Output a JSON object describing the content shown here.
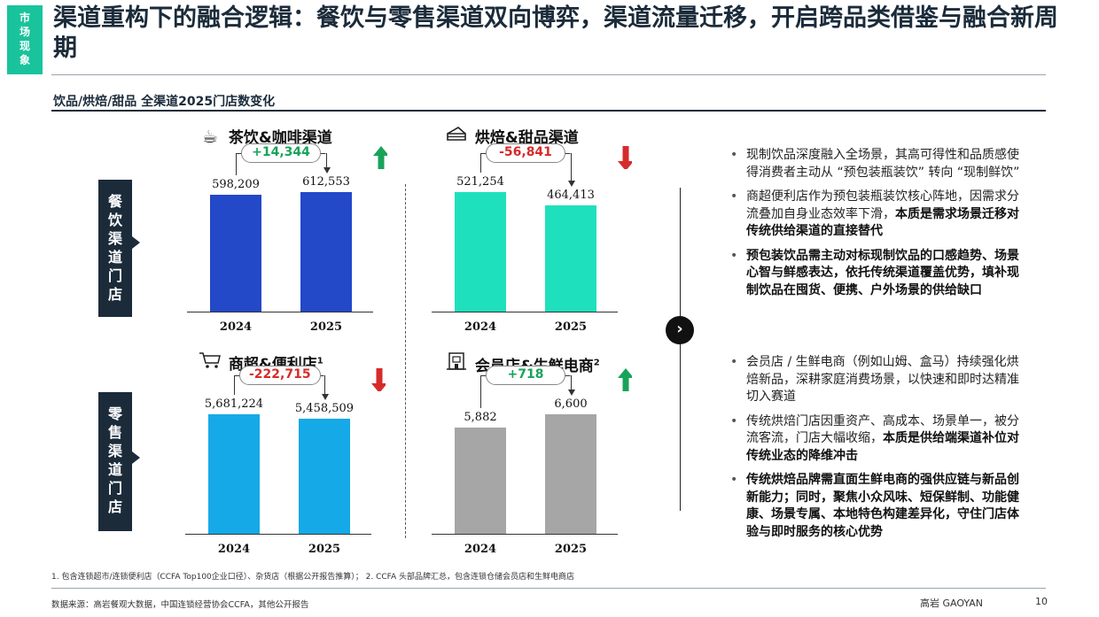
{
  "section_tag": "市场现象",
  "title": "渠道重构下的融合逻辑：餐饮与零售渠道双向博弈，渠道流量迁移，开启跨品类借鉴与融合新周期",
  "subtitle": "饮品/烘焙/甜品 全渠道2025门店数变化",
  "side_labels": {
    "food": "餐饮渠道门店",
    "retail": "零售渠道门店"
  },
  "chart_data": [
    {
      "type": "bar",
      "title": "茶饮&咖啡渠道",
      "categories": [
        "2024",
        "2025"
      ],
      "values": [
        598209,
        612553
      ],
      "value_labels": [
        "598,209",
        "612,553"
      ],
      "delta_label": "+14,344",
      "trend": "up",
      "bar_color": "#2348c8"
    },
    {
      "type": "bar",
      "title": "烘焙&甜品渠道",
      "categories": [
        "2024",
        "2025"
      ],
      "values": [
        521254,
        464413
      ],
      "value_labels": [
        "521,254",
        "464,413"
      ],
      "delta_label": "-56,841",
      "trend": "down",
      "bar_color": "#1fe0bc"
    },
    {
      "type": "bar",
      "title": "商超&便利店",
      "title_sup": "1",
      "categories": [
        "2024",
        "2025"
      ],
      "values": [
        5681224,
        5458509
      ],
      "value_labels": [
        "5,681,224",
        "5,458,509"
      ],
      "delta_label": "-222,715",
      "trend": "down",
      "bar_color": "#16a9e8"
    },
    {
      "type": "bar",
      "title": "会员店&生鲜电商",
      "title_sup": "2",
      "categories": [
        "2024",
        "2025"
      ],
      "values": [
        5882,
        6600
      ],
      "value_labels": [
        "5,882",
        "6,600"
      ],
      "delta_label": "+718",
      "trend": "up",
      "bar_color": "#a6a6a6"
    }
  ],
  "icons": [
    "coffee-cup-icon",
    "cake-icon",
    "shopping-cart-icon",
    "store-icon",
    "chevron-right-icon",
    "up-arrow-icon",
    "down-arrow-icon"
  ],
  "colors": {
    "accent": "#19c39c",
    "navy": "#1b2b3a",
    "up": "#19a35a",
    "down": "#d62b2b"
  },
  "bullets_top": [
    {
      "plain": "现制饮品深度融入全场景，其高可得性和品质感使得消费者主动从 “预包装瓶装饮” 转向 “现制鲜饮”",
      "bold": ""
    },
    {
      "plain": "商超便利店作为预包装瓶装饮核心阵地，因需求分流叠加自身业态效率下滑，",
      "bold": "本质是需求场景迁移对传统供给渠道的直接替代"
    },
    {
      "plain": "",
      "bold": "预包装饮品需主动对标现制饮品的口感趋势、场景心智与鲜感表达，依托传统渠道覆盖优势，填补现制饮品在囤货、便携、户外场景的供给缺口"
    }
  ],
  "bullets_bottom": [
    {
      "plain": "会员店 / 生鲜电商（例如山姆、盒马）持续强化烘焙新品，深耕家庭消费场景，以快速和即时达精准切入赛道",
      "bold": ""
    },
    {
      "plain": "传统烘焙门店因重资产、高成本、场景单一，被分流客流，门店大幅收缩，",
      "bold": "本质是供给端渠道补位对传统业态的降维冲击"
    },
    {
      "plain": "",
      "bold": "传统烘焙品牌需直面生鲜电商的强供应链与新品创新能力；同时，聚焦小众风味、短保鲜制、功能健康、场景专属、本地特色构建差异化，守住门店体验与即时服务的核心优势"
    }
  ],
  "footnote": "1. 包含连锁超市/连锁便利店（CCFA Top100企业口径）、杂货店（根据公开报告推算）； 2. CCFA 头部品牌汇总，包含连锁仓储会员店和生鲜电商店",
  "source": "数据来源：高岩餐观大数据，中国连锁经营协会CCFA，其他公开报告",
  "brand": "高岩 GAOYAN",
  "page_number": "10"
}
